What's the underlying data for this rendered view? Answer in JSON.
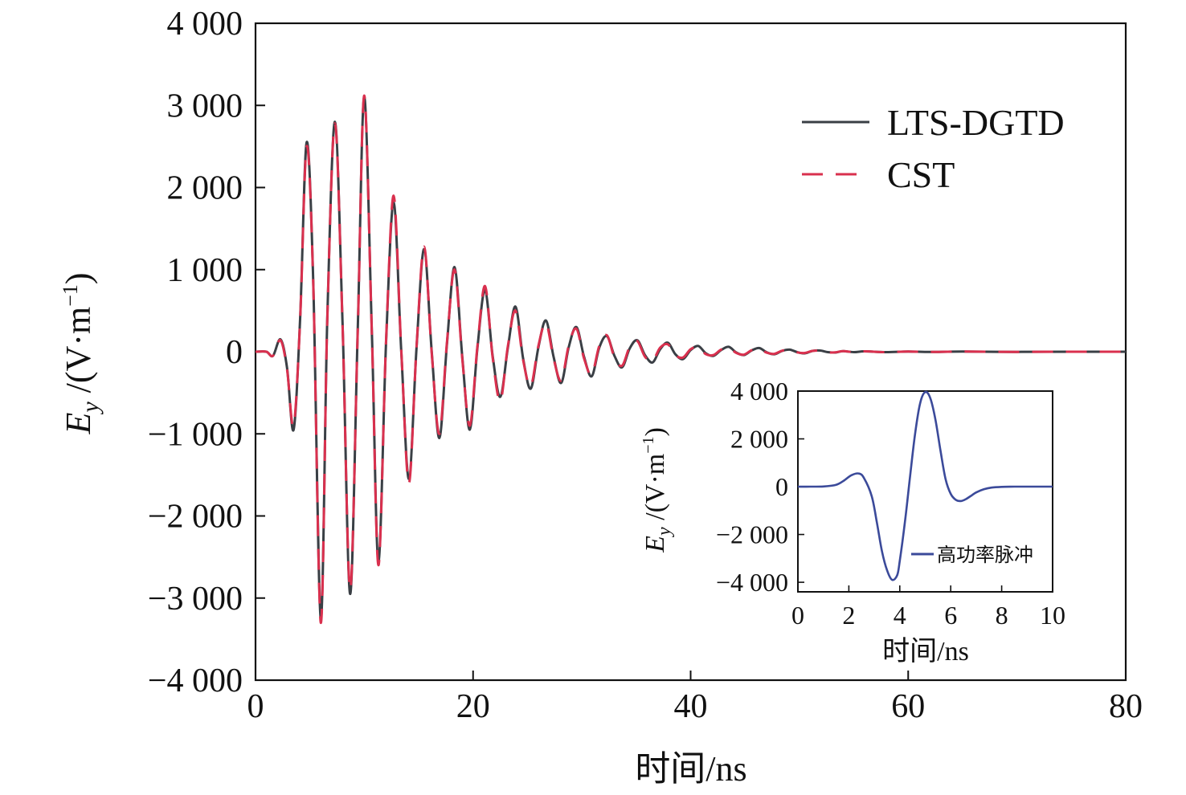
{
  "chart_data": [
    {
      "type": "line",
      "xlabel": "时间/ns",
      "ylabel_var": "E",
      "ylabel_sub": "y",
      "ylabel_unit": " /(V·m",
      "ylabel_sup": "−1",
      "ylabel_close": ")",
      "xlim": [
        0,
        80
      ],
      "ylim": [
        -4000,
        4000
      ],
      "xticks": [
        0,
        20,
        40,
        60,
        80
      ],
      "xtick_labels": [
        "0",
        "20",
        "40",
        "60",
        "80"
      ],
      "yticks": [
        4000,
        3000,
        2000,
        1000,
        0,
        -1000,
        -2000,
        -3000,
        -4000
      ],
      "ytick_labels": [
        "4 000",
        "3 000",
        "2 000",
        "1 000",
        "0",
        "−1 000",
        "−2 000",
        "−3 000",
        "−4 000"
      ],
      "legend_position": "top-right",
      "grid": false,
      "series": [
        {
          "name": "LTS-DGTD",
          "color": "#3a3f45",
          "style": "solid",
          "x": [
            0,
            1.0,
            1.6,
            2.3,
            2.9,
            3.5,
            4.1,
            4.7,
            5.3,
            6.0,
            6.6,
            7.3,
            8.0,
            8.7,
            9.4,
            10.0,
            10.7,
            11.3,
            12.0,
            12.7,
            13.4,
            14.1,
            14.8,
            15.5,
            16.2,
            16.9,
            17.6,
            18.3,
            19.0,
            19.7,
            20.4,
            21.1,
            21.8,
            22.5,
            23.2,
            23.9,
            24.6,
            25.3,
            26.0,
            26.7,
            27.4,
            28.1,
            28.8,
            29.5,
            30.2,
            30.9,
            31.6,
            32.3,
            33.0,
            33.7,
            34.4,
            35.1,
            35.8,
            36.5,
            37.2,
            37.9,
            38.6,
            39.3,
            40.0,
            40.7,
            41.4,
            42.1,
            42.8,
            43.5,
            44.2,
            44.9,
            45.6,
            46.3,
            47.0,
            47.7,
            48.4,
            49.1,
            49.8,
            50.5,
            51.2,
            51.9,
            52.6,
            53.3,
            54.0,
            55.0,
            56.0,
            58.0,
            60.0,
            62.0,
            65.0,
            70.0,
            75.0,
            80.0
          ],
          "y": [
            0,
            0,
            -50,
            150,
            -200,
            -950,
            400,
            2550,
            900,
            -3250,
            400,
            2800,
            350,
            -2950,
            300,
            3100,
            200,
            -2550,
            100,
            1820,
            0,
            -1550,
            50,
            1250,
            0,
            -1050,
            100,
            1030,
            -50,
            -950,
            50,
            750,
            -50,
            -550,
            50,
            550,
            -80,
            -450,
            50,
            380,
            -60,
            -380,
            60,
            300,
            -60,
            -300,
            50,
            190,
            -50,
            -190,
            40,
            140,
            -40,
            -130,
            30,
            110,
            -30,
            -90,
            20,
            70,
            -20,
            -50,
            20,
            60,
            -10,
            -40,
            15,
            45,
            -8,
            -30,
            10,
            25,
            -5,
            -20,
            10,
            15,
            -5,
            -10,
            8,
            -5,
            5,
            -5,
            3,
            -3,
            2,
            -2,
            0,
            0
          ]
        },
        {
          "name": "CST",
          "color": "#d9304e",
          "style": "dashed",
          "x": [
            0,
            1.0,
            1.6,
            2.3,
            2.9,
            3.5,
            4.1,
            4.7,
            5.3,
            6.0,
            6.6,
            7.3,
            8.0,
            8.7,
            9.4,
            10.0,
            10.7,
            11.3,
            12.0,
            12.7,
            13.4,
            14.1,
            14.8,
            15.5,
            16.2,
            16.9,
            17.6,
            18.3,
            19.0,
            19.7,
            20.4,
            21.1,
            21.8,
            22.5,
            23.2,
            23.9,
            24.6,
            25.3,
            26.0,
            26.7,
            27.4,
            28.1,
            28.8,
            29.5,
            30.2,
            30.9,
            31.6,
            32.3,
            33.0,
            33.7,
            34.4,
            35.1,
            35.8,
            36.5,
            37.2,
            37.9,
            38.6,
            39.3,
            40.0,
            40.7,
            41.4,
            42.1,
            42.8,
            43.5,
            44.2,
            44.9,
            45.6,
            46.3,
            47.0,
            47.7,
            48.4,
            49.1,
            49.8,
            50.5,
            51.2,
            51.9,
            52.6,
            53.3,
            54.0,
            55.0,
            56.0,
            58.0,
            60.0,
            62.0,
            65.0,
            70.0,
            75.0,
            80.0
          ],
          "y": [
            0,
            0,
            -50,
            140,
            -220,
            -900,
            380,
            2500,
            880,
            -3300,
            380,
            2780,
            330,
            -2900,
            280,
            3120,
            180,
            -2600,
            120,
            1900,
            20,
            -1600,
            60,
            1280,
            -20,
            -1000,
            120,
            1000,
            -70,
            -900,
            70,
            800,
            -70,
            -600,
            70,
            500,
            -100,
            -420,
            70,
            350,
            -80,
            -350,
            80,
            280,
            -80,
            -280,
            70,
            200,
            -70,
            -170,
            60,
            130,
            -60,
            -110,
            50,
            90,
            -40,
            -70,
            30,
            60,
            -30,
            -40,
            25,
            50,
            -15,
            -35,
            18,
            35,
            -12,
            -25,
            12,
            20,
            -8,
            -15,
            10,
            12,
            -6,
            -8,
            8,
            -5,
            5,
            -5,
            3,
            -3,
            2,
            -2,
            0,
            0
          ]
        }
      ]
    },
    {
      "type": "line",
      "xlabel": "时间/ns",
      "ylabel_var": "E",
      "ylabel_sub": "y",
      "ylabel_unit": " /(V·m",
      "ylabel_sup": "−1",
      "ylabel_close": ")",
      "xlim": [
        0,
        10
      ],
      "ylim": [
        -4400,
        4000
      ],
      "xticks": [
        0,
        2,
        4,
        6,
        8,
        10
      ],
      "xtick_labels": [
        "0",
        "2",
        "4",
        "6",
        "8",
        "10"
      ],
      "yticks": [
        4000,
        2000,
        0,
        -2000,
        -4000
      ],
      "ytick_labels": [
        "4 000",
        "2 000",
        "0",
        "−2 000",
        "−4 000"
      ],
      "legend_position": "bottom-right",
      "grid": false,
      "series": [
        {
          "name": "高功率脉冲",
          "color": "#3b4a9a",
          "style": "solid",
          "x": [
            0,
            0.5,
            1.0,
            1.5,
            1.8,
            2.1,
            2.4,
            2.6,
            2.9,
            3.1,
            3.3,
            3.5,
            3.7,
            3.9,
            4.0,
            4.2,
            4.4,
            4.6,
            4.8,
            5.0,
            5.2,
            5.4,
            5.6,
            5.8,
            6.0,
            6.2,
            6.4,
            6.6,
            6.8,
            7.0,
            7.3,
            7.6,
            8.0,
            8.5,
            9.0,
            10.0
          ],
          "y": [
            0,
            0,
            10,
            80,
            250,
            480,
            550,
            350,
            -400,
            -1500,
            -2700,
            -3500,
            -3900,
            -3700,
            -3100,
            -1500,
            400,
            2200,
            3500,
            3960,
            3700,
            2800,
            1500,
            300,
            -300,
            -550,
            -600,
            -520,
            -380,
            -240,
            -110,
            -40,
            -10,
            0,
            0,
            0
          ]
        }
      ]
    }
  ]
}
